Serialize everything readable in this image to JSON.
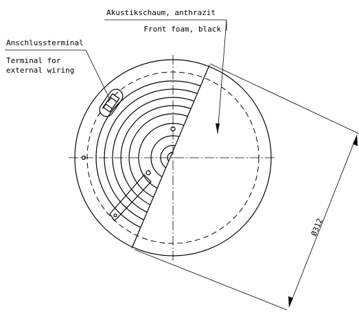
{
  "labels": {
    "foam_de": "Akustikschaum, anthrazit",
    "foam_en": "Front foam, black",
    "terminal_de": "Anschlussterminal",
    "terminal_en_1": "Terminal for",
    "terminal_en_2": "external wiring",
    "diameter": "Ø312"
  }
}
